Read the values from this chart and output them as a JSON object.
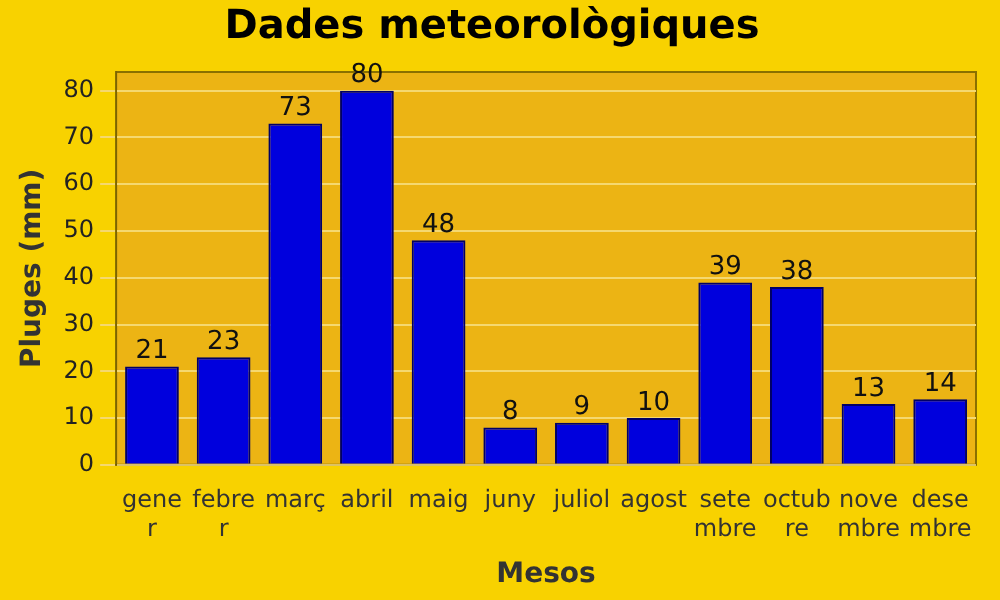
{
  "chart_data": {
    "type": "bar",
    "title": "Dades meteorològiques",
    "xlabel": "Mesos",
    "ylabel": "Pluges (mm)",
    "categories": [
      "gener",
      "febrer",
      "març",
      "abril",
      "maig",
      "juny",
      "juliol",
      "agost",
      "setembre",
      "octubre",
      "novembre",
      "desembre"
    ],
    "values": [
      21,
      23,
      73,
      80,
      48,
      8,
      9,
      10,
      39,
      38,
      13,
      14
    ],
    "color": "#0000dd",
    "ylim": [
      0,
      84
    ],
    "yticks": [
      0,
      10,
      20,
      30,
      40,
      50,
      60,
      70,
      80
    ],
    "grid": "y",
    "data_labels": true,
    "legend": false
  }
}
